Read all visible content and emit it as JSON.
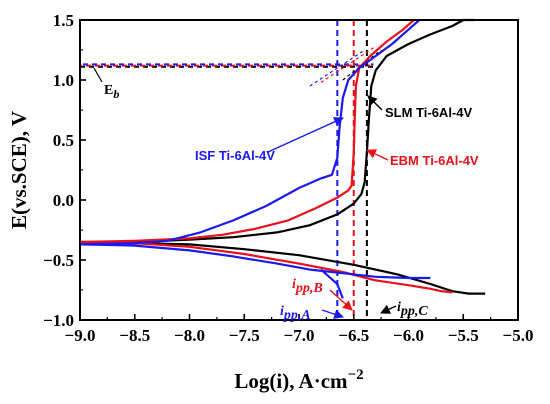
{
  "chart_data": {
    "type": "line",
    "xlabel": "Log(i), A·cm",
    "xlabel_exp": "−2",
    "ylabel": "E(vs.SCE), V",
    "xlim": [
      -9.0,
      -5.0
    ],
    "ylim": [
      -1.0,
      1.5
    ],
    "x_ticks": [
      -9.0,
      -8.5,
      -8.0,
      -7.5,
      -7.0,
      -6.5,
      -6.0,
      -5.5,
      -5.0
    ],
    "x_tick_labels": [
      "−9.0",
      "−8.5",
      "−8.0",
      "−7.5",
      "−7.0",
      "−6.5",
      "−6.0",
      "−5.5",
      "−5.0"
    ],
    "y_ticks": [
      -1.0,
      -0.5,
      0.0,
      0.5,
      1.0,
      1.5
    ],
    "y_tick_labels": [
      "−1.0",
      "−0.5",
      "0.0",
      "0.5",
      "1.0",
      "1.5"
    ],
    "grid": false,
    "series": [
      {
        "name": "SLM Ti-6Al-4V",
        "color": "#000000",
        "anodic": [
          [
            -9.0,
            -0.35
          ],
          [
            -8.5,
            -0.35
          ],
          [
            -8.0,
            -0.33
          ],
          [
            -7.6,
            -0.31
          ],
          [
            -7.2,
            -0.27
          ],
          [
            -6.9,
            -0.21
          ],
          [
            -6.65,
            -0.12
          ],
          [
            -6.5,
            -0.03
          ],
          [
            -6.43,
            0.05
          ],
          [
            -6.4,
            0.15
          ],
          [
            -6.38,
            0.4
          ],
          [
            -6.36,
            0.7
          ],
          [
            -6.34,
            0.95
          ],
          [
            -6.3,
            1.08
          ],
          [
            -6.2,
            1.2
          ],
          [
            -6.0,
            1.3
          ],
          [
            -5.8,
            1.38
          ],
          [
            -5.6,
            1.45
          ],
          [
            -5.5,
            1.5
          ],
          [
            -5.4,
            1.5
          ]
        ],
        "cathodic": [
          [
            -9.0,
            -0.35
          ],
          [
            -8.5,
            -0.36
          ],
          [
            -8.0,
            -0.37
          ],
          [
            -7.5,
            -0.41
          ],
          [
            -7.0,
            -0.46
          ],
          [
            -6.5,
            -0.54
          ],
          [
            -6.1,
            -0.62
          ],
          [
            -5.8,
            -0.7
          ],
          [
            -5.6,
            -0.76
          ],
          [
            -5.45,
            -0.78
          ],
          [
            -5.3,
            -0.78
          ]
        ]
      },
      {
        "name": "EBM Ti-6Al-4V",
        "color": "#e8101a",
        "anodic": [
          [
            -9.0,
            -0.35
          ],
          [
            -8.5,
            -0.34
          ],
          [
            -8.0,
            -0.32
          ],
          [
            -7.7,
            -0.29
          ],
          [
            -7.4,
            -0.24
          ],
          [
            -7.1,
            -0.17
          ],
          [
            -6.85,
            -0.07
          ],
          [
            -6.65,
            0.02
          ],
          [
            -6.55,
            0.08
          ],
          [
            -6.52,
            0.12
          ],
          [
            -6.5,
            0.4
          ],
          [
            -6.49,
            0.7
          ],
          [
            -6.48,
            0.95
          ],
          [
            -6.45,
            1.1
          ],
          [
            -6.35,
            1.2
          ],
          [
            -6.2,
            1.32
          ],
          [
            -6.05,
            1.42
          ],
          [
            -5.95,
            1.5
          ]
        ],
        "cathodic": [
          [
            -9.0,
            -0.35
          ],
          [
            -8.5,
            -0.36
          ],
          [
            -8.0,
            -0.39
          ],
          [
            -7.5,
            -0.45
          ],
          [
            -7.0,
            -0.53
          ],
          [
            -6.6,
            -0.6
          ],
          [
            -6.3,
            -0.67
          ],
          [
            -6.0,
            -0.71
          ],
          [
            -5.8,
            -0.74
          ],
          [
            -5.7,
            -0.76
          ],
          [
            -5.6,
            -0.77
          ]
        ]
      },
      {
        "name": "ISF Ti-6Al-4V",
        "color": "#1a1aee",
        "anodic": [
          [
            -9.0,
            -0.37
          ],
          [
            -8.5,
            -0.36
          ],
          [
            -8.2,
            -0.34
          ],
          [
            -7.9,
            -0.27
          ],
          [
            -7.6,
            -0.17
          ],
          [
            -7.3,
            -0.05
          ],
          [
            -7.0,
            0.1
          ],
          [
            -6.8,
            0.18
          ],
          [
            -6.7,
            0.21
          ],
          [
            -6.65,
            0.35
          ],
          [
            -6.63,
            0.6
          ],
          [
            -6.6,
            0.85
          ],
          [
            -6.55,
            1.0
          ],
          [
            -6.45,
            1.1
          ],
          [
            -6.3,
            1.2
          ],
          [
            -6.15,
            1.3
          ],
          [
            -6.0,
            1.42
          ],
          [
            -5.9,
            1.5
          ]
        ],
        "cathodic": [
          [
            -9.0,
            -0.37
          ],
          [
            -8.5,
            -0.38
          ],
          [
            -8.0,
            -0.42
          ],
          [
            -7.6,
            -0.47
          ],
          [
            -7.2,
            -0.53
          ],
          [
            -6.9,
            -0.58
          ],
          [
            -6.6,
            -0.61
          ],
          [
            -6.3,
            -0.64
          ],
          [
            -6.0,
            -0.65
          ],
          [
            -5.8,
            -0.65
          ]
        ],
        "cathodic_tail": [
          [
            -6.8,
            -0.58
          ],
          [
            -6.65,
            -0.7
          ],
          [
            -6.6,
            -0.82
          ]
        ]
      }
    ],
    "guides": {
      "hline_red": 1.12,
      "hline_blue": 1.13,
      "hline_black": 1.11,
      "vlines": [
        {
          "x": -6.65,
          "color": "#1a1aee"
        },
        {
          "x": -6.5,
          "color": "#e8101a"
        },
        {
          "x": -6.38,
          "color": "#000000"
        }
      ],
      "tangents": [
        {
          "color": "#1a1aee",
          "from": [
            -6.9,
            0.95
          ],
          "to": [
            -6.4,
            1.25
          ]
        },
        {
          "color": "#e8101a",
          "from": [
            -6.8,
            0.98
          ],
          "to": [
            -6.3,
            1.28
          ]
        },
        {
          "color": "#000000",
          "from": [
            -6.6,
            1.0
          ],
          "to": [
            -6.25,
            1.25
          ]
        }
      ]
    },
    "annotations": {
      "eb": {
        "main": "E",
        "sub": "b"
      },
      "slm": "SLM Ti-6Al-4V",
      "isf": "ISF Ti-6Al-4V",
      "ebm": "EBM Ti-6Al-4V",
      "ipp_b": {
        "main": "i",
        "sub": "pp,B"
      },
      "ipp_a": {
        "main": "i",
        "sub": "pp,A"
      },
      "ipp_c": {
        "main": "i",
        "sub": "pp,C"
      }
    }
  }
}
